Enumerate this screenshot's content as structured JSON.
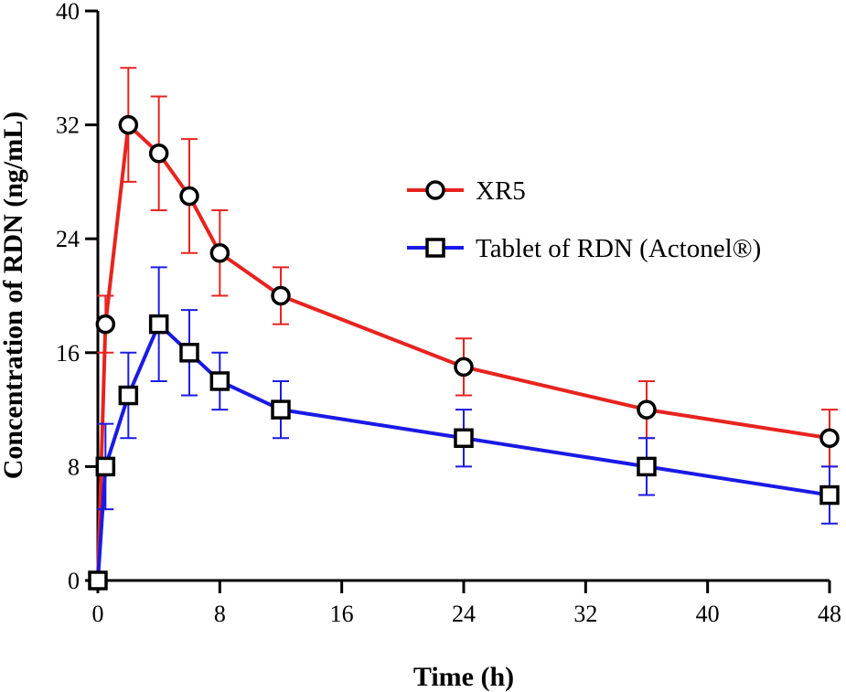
{
  "chart_data": {
    "type": "line",
    "title": "",
    "xlabel": "Time (h)",
    "ylabel": "Concentration of RDN (ng/mL)",
    "xlim": [
      0,
      48
    ],
    "ylim": [
      0,
      40
    ],
    "xticks": [
      0,
      8,
      16,
      24,
      32,
      40,
      48
    ],
    "yticks": [
      0,
      8,
      16,
      24,
      32,
      40
    ],
    "grid": false,
    "legend_position": "top-right",
    "series": [
      {
        "name": "XR5",
        "color": "#e8231f",
        "marker": "circle",
        "x": [
          0,
          0.5,
          2,
          4,
          6,
          8,
          12,
          24,
          36,
          48
        ],
        "y": [
          0,
          18,
          32,
          30,
          27,
          23,
          20,
          15,
          12,
          10
        ],
        "err": [
          0,
          2,
          4,
          4,
          4,
          3,
          2,
          2,
          2,
          2
        ]
      },
      {
        "name": "Tablet of RDN (Actonel®)",
        "color": "#1a1ae6",
        "marker": "square",
        "x": [
          0,
          0.5,
          2,
          4,
          6,
          8,
          12,
          24,
          36,
          48
        ],
        "y": [
          0,
          8,
          13,
          18,
          16,
          14,
          12,
          10,
          8,
          6
        ],
        "err": [
          0,
          3,
          3,
          4,
          3,
          2,
          2,
          2,
          2,
          2
        ]
      }
    ]
  }
}
